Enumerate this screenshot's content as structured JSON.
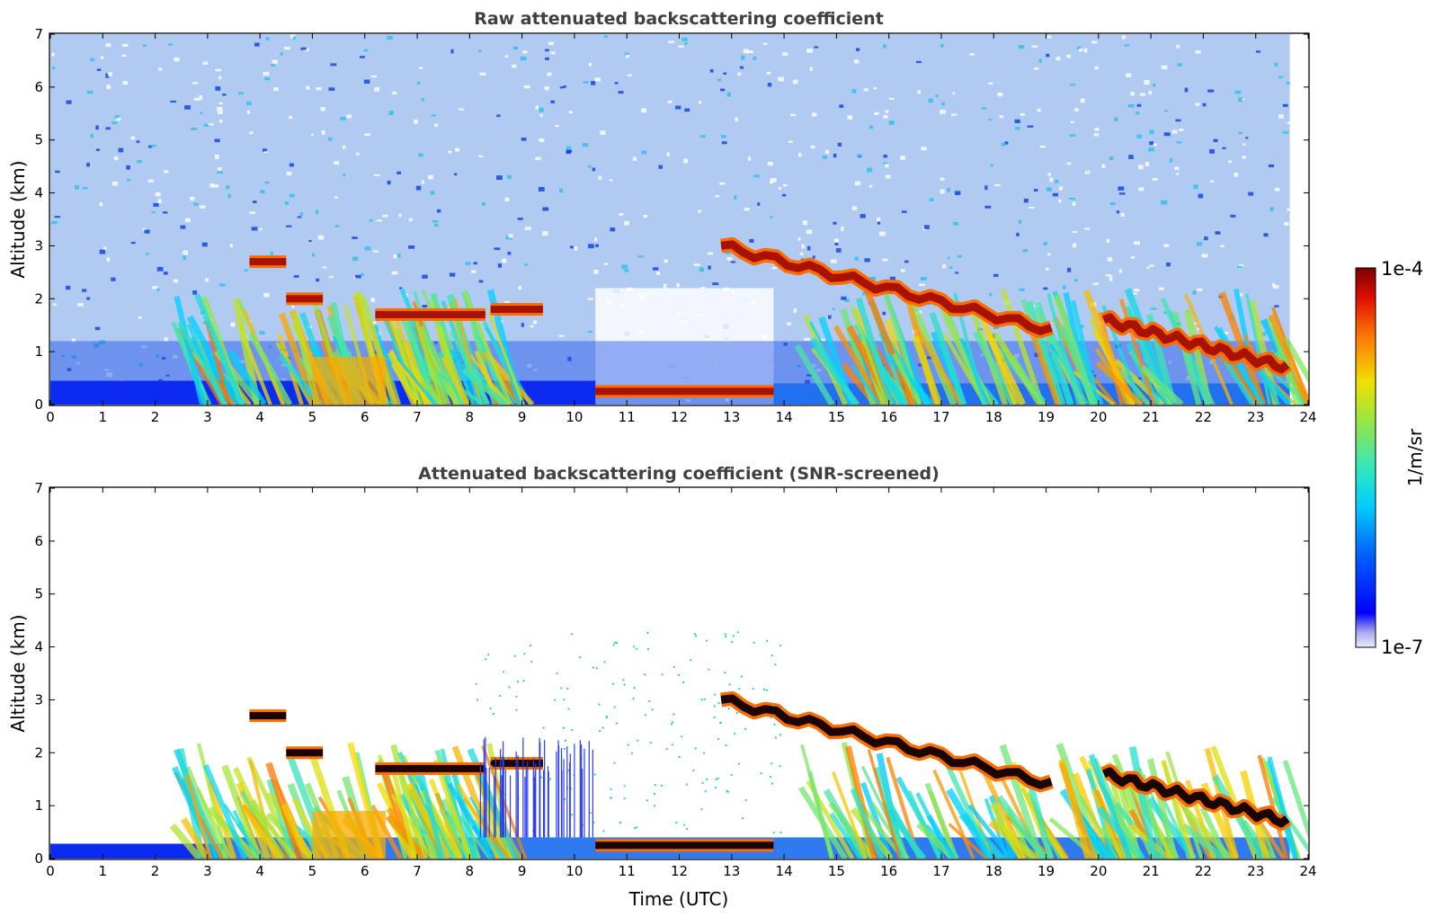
{
  "chart_data": [
    {
      "type": "heatmap",
      "title": "Raw attenuated backscattering coefficient",
      "xlabel": "",
      "ylabel": "Altitude (km)",
      "xlim": [
        0,
        24
      ],
      "ylim": [
        0,
        7
      ],
      "xticks": [
        "0",
        "1",
        "2",
        "3",
        "4",
        "5",
        "6",
        "7",
        "8",
        "9",
        "10",
        "11",
        "12",
        "13",
        "14",
        "15",
        "16",
        "17",
        "18",
        "19",
        "20",
        "21",
        "22",
        "23",
        "24"
      ],
      "yticks": [
        "0",
        "1",
        "2",
        "3",
        "4",
        "5",
        "6",
        "7"
      ],
      "screened": false,
      "data_end_time": 23.65,
      "features": [
        {
          "name": "near-surface layer",
          "t_start": 0,
          "t_end": 23.65,
          "alt_top_km": 0.45
        },
        {
          "name": "cloud layer",
          "t_start": 3.8,
          "t_end": 4.5,
          "alt_km": 2.7
        },
        {
          "name": "cloud layer",
          "t_start": 4.5,
          "t_end": 5.2,
          "alt_km": 2.0
        },
        {
          "name": "cloud layer",
          "t_start": 6.2,
          "t_end": 8.3,
          "alt_km": 1.7
        },
        {
          "name": "cloud layer",
          "t_start": 8.4,
          "t_end": 9.4,
          "alt_km": 1.8
        },
        {
          "name": "low cloud",
          "t_start": 10.4,
          "t_end": 13.8,
          "alt_km": 0.25
        },
        {
          "name": "descending cloud layer",
          "t_start": 12.8,
          "t_end": 19.1,
          "alt_start_km": 3.0,
          "alt_end_km": 1.4
        },
        {
          "name": "descending cloud layer",
          "t_start": 20.1,
          "t_end": 23.6,
          "alt_start_km": 1.6,
          "alt_end_km": 0.7
        }
      ]
    },
    {
      "type": "heatmap",
      "title": "Attenuated backscattering coefficient (SNR-screened)",
      "xlabel": "Time (UTC)",
      "ylabel": "Altitude (km)",
      "xlim": [
        0,
        24
      ],
      "ylim": [
        0,
        7
      ],
      "xticks": [
        "0",
        "1",
        "2",
        "3",
        "4",
        "5",
        "6",
        "7",
        "8",
        "9",
        "10",
        "11",
        "12",
        "13",
        "14",
        "15",
        "16",
        "17",
        "18",
        "19",
        "20",
        "21",
        "22",
        "23",
        "24"
      ],
      "yticks": [
        "0",
        "1",
        "2",
        "3",
        "4",
        "5",
        "6",
        "7"
      ],
      "screened": true,
      "data_end_time": 23.65
    }
  ],
  "colorbar": {
    "label": "1/m/sr",
    "max_label": "1e-4",
    "min_label": "1e-7",
    "scale": "log",
    "colormap": "jet"
  }
}
